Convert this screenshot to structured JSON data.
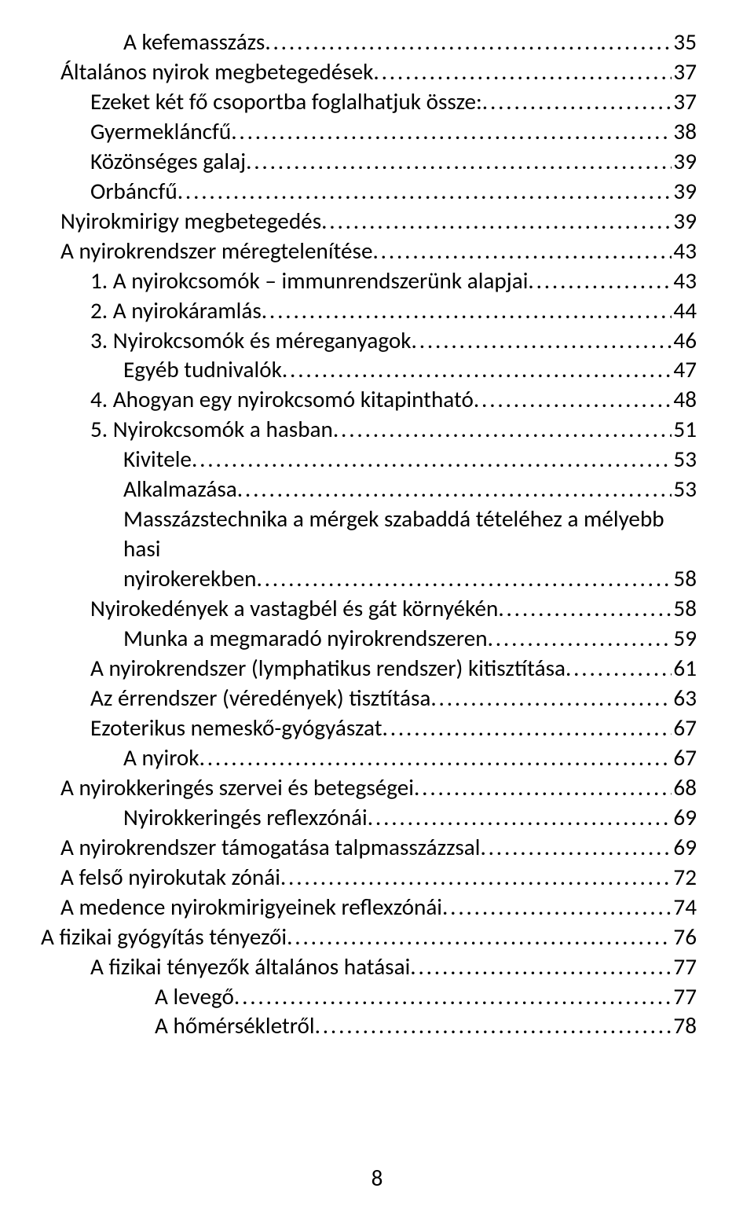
{
  "pageNumber": "8",
  "entries": [
    {
      "label": "A kefemasszázs",
      "page": "35",
      "indent": 3
    },
    {
      "label": "Általános nyirok megbetegedések",
      "page": "37",
      "indent": 1
    },
    {
      "label": "Ezeket két fő csoportba foglalhatjuk össze:",
      "page": "37",
      "indent": 2
    },
    {
      "label": "Gyermekláncfű",
      "page": "38",
      "indent": 2
    },
    {
      "label": "Közönséges galaj",
      "page": "39",
      "indent": 2
    },
    {
      "label": "Orbáncfű",
      "page": "39",
      "indent": 2
    },
    {
      "label": "Nyirokmirigy megbetegedés",
      "page": "39",
      "indent": 1
    },
    {
      "label": "A nyirokrendszer méregtelenítése",
      "page": "43",
      "indent": 1
    },
    {
      "label": "1. A nyirokcsomók – immunrendszerünk alapjai",
      "page": "43",
      "indent": 2
    },
    {
      "label": "2. A nyirokáramlás",
      "page": "44",
      "indent": 2
    },
    {
      "label": "3. Nyirokcsomók és méreganyagok",
      "page": "46",
      "indent": 2
    },
    {
      "label": "Egyéb tudnivalók",
      "page": "47",
      "indent": 3
    },
    {
      "label": "4. Ahogyan egy nyirokcsomó kitapintható",
      "page": "48",
      "indent": 2
    },
    {
      "label": "5. Nyirokcsomók a hasban",
      "page": "51",
      "indent": 2
    },
    {
      "label": "Kivitele",
      "page": "53",
      "indent": 3
    },
    {
      "label": "Alkalmazása",
      "page": "53",
      "indent": 3
    },
    {
      "label": "Masszázstechnika a mérgek szabaddá tételéhez a mélyebb hasi",
      "cont": "nyirokerekben",
      "page": "58",
      "indent": 3
    },
    {
      "label": "Nyirokedények a vastagbél és gát környékén",
      "page": "58",
      "indent": 2
    },
    {
      "label": "Munka a megmaradó nyirokrendszeren",
      "page": "59",
      "indent": 3
    },
    {
      "label": "A nyirokrendszer (lymphatikus rendszer) kitisztítása",
      "page": "61",
      "indent": 2
    },
    {
      "label": "Az érrendszer (véredények) tisztítása",
      "page": "63",
      "indent": 2
    },
    {
      "label": "Ezoterikus nemeskő-gyógyászat",
      "page": "67",
      "indent": 2
    },
    {
      "label": "A nyirok",
      "page": "67",
      "indent": 3
    },
    {
      "label": "A nyirokkeringés szervei és betegségei",
      "page": "68",
      "indent": 1
    },
    {
      "label": "Nyirokkeringés reflexzónái",
      "page": "69",
      "indent": 3
    },
    {
      "label": "A nyirokrendszer támogatása talpmasszázzsal",
      "page": "69",
      "indent": 1
    },
    {
      "label": "A felső nyirokutak zónái",
      "page": "72",
      "indent": 1
    },
    {
      "label": "A medence nyirokmirigyeinek reflexzónái",
      "page": "74",
      "indent": 1
    },
    {
      "label": "A fizikai gyógyítás tényezői",
      "page": "76",
      "indent": 0
    },
    {
      "label": "A fizikai tényezők általános hatásai",
      "page": "77",
      "indent": 2
    },
    {
      "label": "A levegő",
      "page": "77",
      "indent": 4
    },
    {
      "label": "A hőmérsékletről",
      "page": "78",
      "indent": 4
    }
  ]
}
